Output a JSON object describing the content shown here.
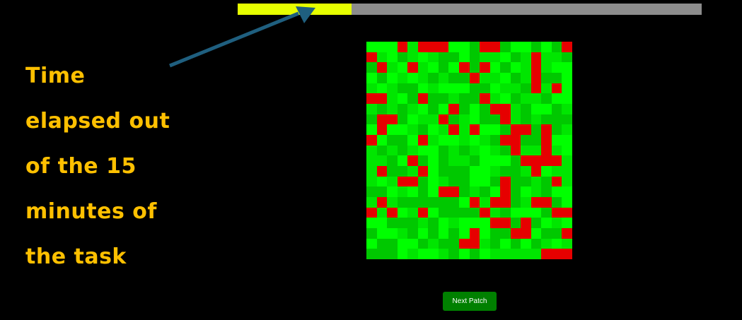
{
  "progress": {
    "fraction_elapsed": 0.245,
    "fill_color": "#e6ff00",
    "track_color": "#8c8c8c"
  },
  "annotation": {
    "text": "Time\nelapsed out\nof the 15\nminutes of\nthe task",
    "color": "#ffc000",
    "arrow_color": "#1f5f7f"
  },
  "patch": {
    "rows": 21,
    "cols": 20,
    "legend": {
      "0": "#00e600",
      "1": "#00ff00",
      "2": "#00c800",
      "3": "#e60000"
    },
    "grid": [
      "11130333112332112123",
      "30120102212001203002",
      "23013012132312103011",
      "12101020223001203221",
      "01022101112210023031",
      "33012322022301200211",
      "02020121321233021120",
      "23321003201223020222",
      "13110210303112332320",
      "31221301101023322311",
      "02020112020102300301",
      "00213212002111233330",
      "03220312221102203100",
      "01033210221123220230",
      "22101213320213210211",
      "03022222213033203321",
      "30310312222302111233",
      "11222021011133232101",
      "21102121213122331223",
      "12211202233021212010",
      "22210110212100000333"
    ]
  },
  "buttons": {
    "next_label": "Next Patch",
    "color": "#008000"
  }
}
